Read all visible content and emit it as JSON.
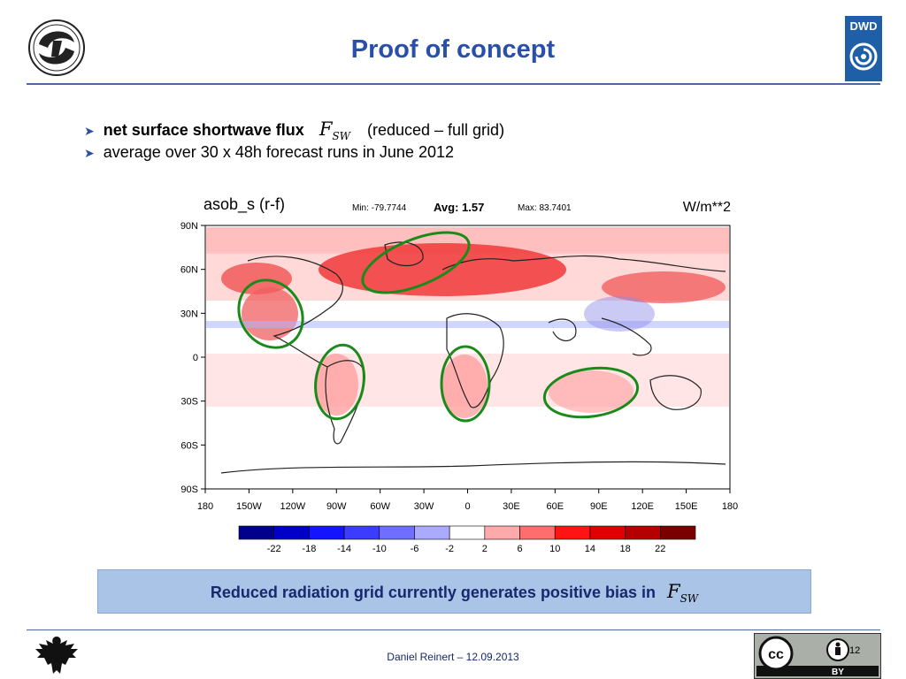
{
  "header": {
    "title": "Proof of concept",
    "dwd_logo_text": "DWD"
  },
  "bullets": {
    "item1_bold": "net surface shortwave flux",
    "item1_math_main": "F",
    "item1_math_sub": "SW",
    "item1_rest": "(reduced – full grid)",
    "item2": "average over 30 x 48h forecast runs in June 2012"
  },
  "chart_data": {
    "type": "heatmap",
    "title": "asob_s (r-f)",
    "min_label": "Min: -79.7744",
    "avg_label": "Avg: 1.57",
    "max_label": "Max: 83.7401",
    "units": "W/m**2",
    "y_ticks": [
      "90N",
      "60N",
      "30N",
      "0",
      "30S",
      "60S",
      "90S"
    ],
    "x_ticks": [
      "180",
      "150W",
      "120W",
      "90W",
      "60W",
      "30W",
      "0",
      "30E",
      "60E",
      "90E",
      "120E",
      "150E",
      "180"
    ],
    "colorbar_labels": [
      "-22",
      "-18",
      "-14",
      "-10",
      "-6",
      "-2",
      "2",
      "6",
      "10",
      "14",
      "18",
      "22"
    ],
    "colorbar_colors": [
      "#00008b",
      "#0000c8",
      "#1414ff",
      "#3c3cff",
      "#6e6eff",
      "#aaaaff",
      "#ffffff",
      "#ffaaaa",
      "#ff6e6e",
      "#ff1414",
      "#e00000",
      "#b40000",
      "#7a0000"
    ],
    "highlight_color": "#1a8a1a"
  },
  "banner": {
    "text": "Reduced radiation grid currently generates positive bias in",
    "math_main": "F",
    "math_sub": "SW"
  },
  "footer": {
    "author_date": "Daniel Reinert – 12.09.2013",
    "license": "BY",
    "license_cc": "cc",
    "page_number": "12"
  }
}
